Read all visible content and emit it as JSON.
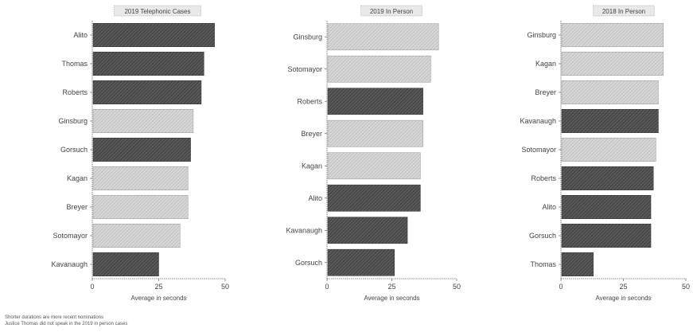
{
  "chart_data": [
    {
      "type": "bar",
      "title": "2019 Telephonic Cases",
      "xlabel": "Average in seconds",
      "xlim": [
        0,
        50
      ],
      "xticks": [
        "0",
        "25",
        "50"
      ],
      "categories": [
        "Alito",
        "Thomas",
        "Roberts",
        "Ginsburg",
        "Gorsuch",
        "Kagan",
        "Breyer",
        "Sotomayor",
        "Kavanaugh"
      ],
      "values": [
        46,
        42,
        41,
        38,
        37,
        36,
        36,
        33,
        25
      ],
      "bar_colors": [
        "#4d4d4d",
        "#555555",
        "#555555",
        "#c4c4c4",
        "#505050",
        "#c8c8c8",
        "#c8c8c8",
        "#c2c2c2",
        "#5a5a5a"
      ]
    },
    {
      "type": "bar",
      "title": "2019 In Person",
      "xlabel": "Average in seconds",
      "xlim": [
        0,
        50
      ],
      "xticks": [
        "0",
        "25",
        "50"
      ],
      "categories": [
        "Ginsburg",
        "Sotomayor",
        "Roberts",
        "Breyer",
        "Kagan",
        "Alito",
        "Kavanaugh",
        "Gorsuch"
      ],
      "values": [
        43,
        40,
        37,
        37,
        36,
        36,
        31,
        26
      ],
      "bar_colors": [
        "#cccccc",
        "#c8c8c8",
        "#505050",
        "#cacaca",
        "#c8c8c8",
        "#4f4f4f",
        "#555555",
        "#555555"
      ]
    },
    {
      "type": "bar",
      "title": "2018 In Person",
      "xlabel": "Average in seconds",
      "xlim": [
        0,
        50
      ],
      "xticks": [
        "0",
        "25",
        "50"
      ],
      "categories": [
        "Ginsburg",
        "Kagan",
        "Breyer",
        "Kavanaugh",
        "Sotomayor",
        "Roberts",
        "Alito",
        "Gorsuch",
        "Thomas"
      ],
      "values": [
        41,
        41,
        39,
        39,
        38,
        37,
        36,
        36,
        13
      ],
      "bar_colors": [
        "#cccccc",
        "#c8c8c8",
        "#cccccc",
        "#4f4f4f",
        "#c8c8c8",
        "#555555",
        "#555555",
        "#575757",
        "#5a5a5a"
      ]
    }
  ],
  "notes": [
    "Shorter durations are more recent nominations",
    "Justice Thomas did not speak in the 2019 in person cases"
  ]
}
